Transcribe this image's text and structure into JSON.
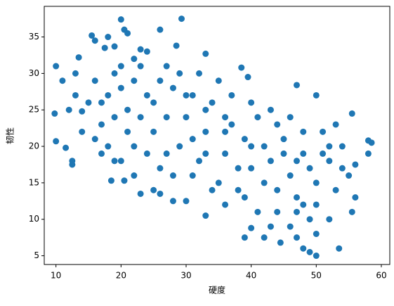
{
  "chart_data": {
    "type": "scatter",
    "x_label": "硬度",
    "y_label": "韧性",
    "color": "#1f77b4",
    "grid": false,
    "xlim": [
      8.2,
      61.3
    ],
    "ylim": [
      3.8,
      39.2
    ],
    "xticks": [
      10,
      20,
      30,
      40,
      50,
      60
    ],
    "yticks": [
      5,
      10,
      15,
      20,
      25,
      30,
      35
    ],
    "x": [
      10,
      9.8,
      10,
      11,
      11.5,
      12.5,
      12.5,
      13,
      13.5,
      14,
      15.5,
      16,
      17.5,
      18,
      19,
      20,
      20.5,
      21,
      23,
      26,
      29.3,
      28.5,
      33,
      38.5,
      39.5,
      47,
      50,
      55.5,
      58,
      58.5,
      58,
      56,
      55.5,
      53.5,
      50,
      49,
      48,
      47,
      44.5,
      42,
      40,
      39,
      33,
      30,
      28,
      26,
      23,
      18.5,
      20.5,
      16,
      15,
      17,
      18,
      19,
      21,
      22,
      23,
      24,
      25,
      24,
      22,
      20,
      26,
      27,
      28,
      29,
      30,
      31,
      32,
      33,
      34,
      35,
      36,
      37,
      38,
      39,
      40,
      41,
      42,
      43,
      44,
      45,
      46,
      47,
      48,
      49,
      50,
      51,
      52,
      53,
      54,
      55,
      46,
      48,
      50,
      52,
      44,
      36,
      34,
      31,
      27,
      25,
      21,
      19,
      17,
      16,
      14,
      12,
      13,
      18,
      20,
      23,
      26,
      29,
      32,
      35,
      37,
      40,
      43,
      46,
      48,
      53,
      54,
      51,
      49,
      47,
      45,
      42,
      39,
      36,
      33,
      31,
      28,
      25,
      22,
      19,
      17,
      24,
      22,
      20,
      27,
      30,
      33,
      36,
      38,
      41,
      43,
      47,
      50,
      52,
      56,
      44,
      40
    ],
    "y": [
      31,
      24.5,
      20.7,
      29,
      19.8,
      17.5,
      18,
      30,
      32.2,
      24.8,
      35.2,
      34.5,
      33.5,
      35,
      33.7,
      37.4,
      36,
      35.5,
      33.3,
      36,
      37.5,
      33.8,
      32.7,
      30.8,
      29.5,
      28.4,
      27,
      24.5,
      20.8,
      20.5,
      19,
      17.5,
      11,
      6,
      5,
      5.5,
      6,
      7.5,
      6.8,
      7.5,
      8.8,
      7.5,
      10.5,
      12.5,
      12.5,
      13.5,
      13.5,
      15.3,
      15.3,
      21,
      26,
      23,
      27,
      30,
      25,
      29,
      31,
      27,
      22,
      19,
      20,
      18,
      17,
      24,
      28,
      20,
      24,
      27,
      18,
      22,
      26,
      15,
      19,
      23,
      17,
      13,
      20,
      24,
      15,
      18,
      11,
      21,
      16,
      13,
      19,
      10,
      15,
      22,
      18,
      14,
      20,
      16,
      9,
      12,
      12,
      10,
      14,
      12,
      14,
      16,
      19,
      26,
      22,
      24,
      26,
      29,
      22,
      25,
      27,
      20,
      28,
      24,
      29,
      30,
      30,
      29,
      27,
      26,
      25,
      24,
      22,
      23,
      17,
      19,
      17,
      18,
      19,
      20,
      21,
      22,
      19,
      21,
      16,
      14,
      16,
      18,
      19,
      33,
      32,
      31,
      31,
      27,
      25,
      24,
      14,
      11,
      9,
      11,
      8,
      20,
      13,
      23,
      17
    ]
  }
}
